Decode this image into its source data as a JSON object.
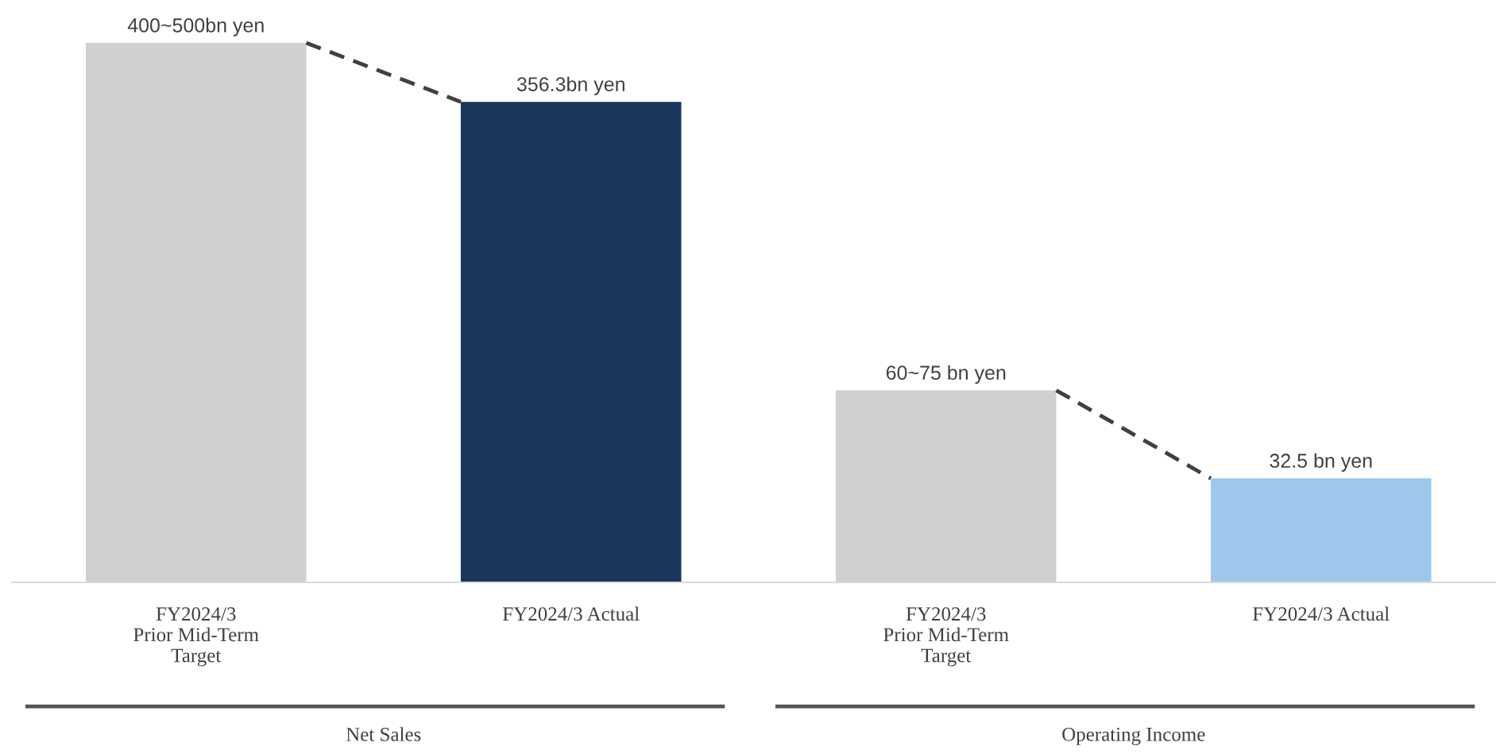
{
  "chart_data": [
    {
      "type": "bar",
      "categories": [
        "FY2024/3\nPrior Mid-Term\nTarget",
        "FY2024/3 Actual"
      ],
      "values": [
        400,
        356.3
      ],
      "colors": [
        "#d0d0d0",
        "#1a365d"
      ],
      "value_labels": [
        "400~500bn yen",
        "356.3bn yen"
      ],
      "annotations": [
        "Net Sales"
      ]
    },
    {
      "type": "bar",
      "categories": [
        "FY2024/3\nPrior Mid-Term\nTarget",
        "FY2024/3 Actual"
      ],
      "values": [
        60,
        32.5
      ],
      "colors": [
        "#d0d0d0",
        "#9dc8ec"
      ],
      "value_labels": [
        "60~75 bn yen",
        "32.5 bn yen"
      ],
      "annotations": [
        "Operating Income"
      ]
    }
  ]
}
